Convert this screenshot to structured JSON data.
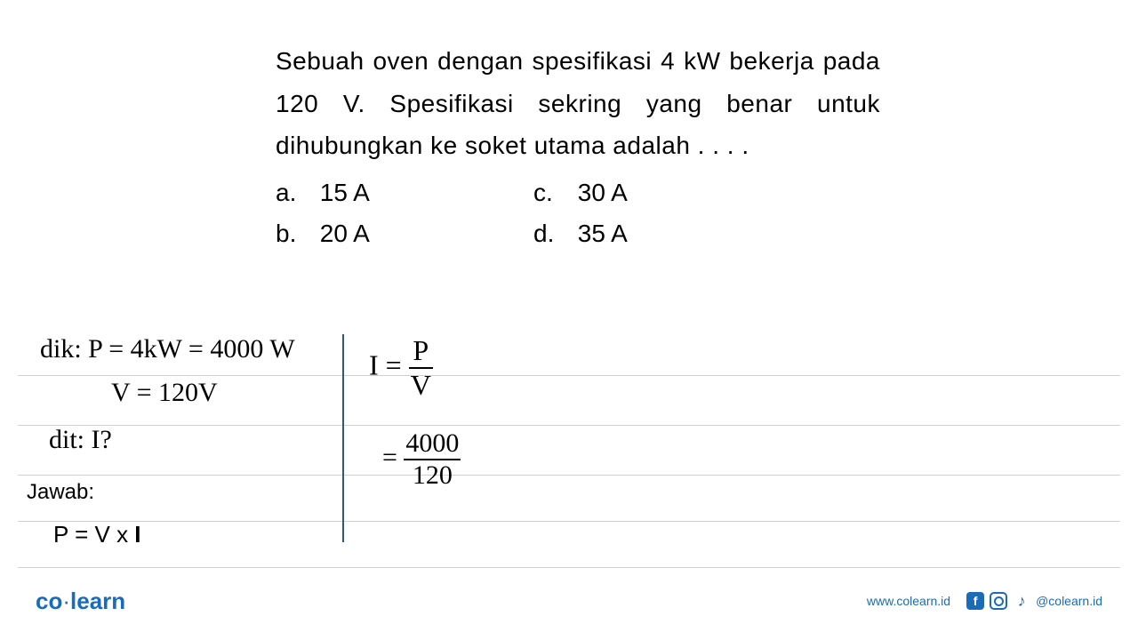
{
  "question": {
    "text": "Sebuah oven dengan spesifikasi 4 kW bekerja pada 120 V. Spesifikasi sekring yang benar untuk dihubungkan ke soket utama adalah . . . .",
    "options": {
      "a": "15 A",
      "b": "20 A",
      "c": "30 A",
      "d": "35 A"
    }
  },
  "work": {
    "dik_label": "dik:",
    "dik_p": "P = 4kW = 4000 W",
    "dik_v": "V = 120V",
    "dit_label": "dit:",
    "dit_value": "I?",
    "jawab_label": "Jawab:",
    "formula": "P = V x I",
    "calc_I_label": "I =",
    "calc_frac_p_num": "P",
    "calc_frac_p_den": "V",
    "calc_eq": "=",
    "calc_frac_num": "4000",
    "calc_frac_den": "120"
  },
  "footer": {
    "logo_co": "co",
    "logo_learn": "learn",
    "website": "www.colearn.id",
    "handle": "@colearn.id",
    "fb_letter": "f",
    "tiktok_symbol": "♪"
  },
  "colors": {
    "brand": "#1a6bb8",
    "rule": "#d0d0d0",
    "divider": "#2a5a8a",
    "text": "#000000",
    "background": "#ffffff"
  },
  "typography": {
    "question_fontsize": 28,
    "option_fontsize": 28,
    "handwriting_fontsize": 30,
    "footer_fontsize": 14,
    "logo_fontsize": 26
  }
}
